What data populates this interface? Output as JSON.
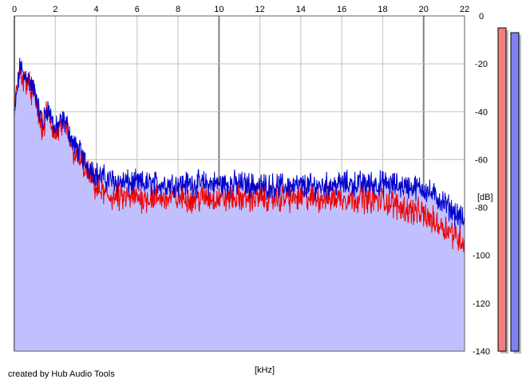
{
  "chart_data": {
    "type": "area",
    "title": "",
    "xlabel": "[kHz]",
    "ylabel": "[dB]",
    "xlim": [
      0,
      22
    ],
    "ylim": [
      -140,
      0
    ],
    "x_ticks": [
      0,
      2,
      4,
      6,
      8,
      10,
      12,
      14,
      16,
      18,
      20,
      22
    ],
    "y_ticks": [
      0,
      -20,
      -40,
      -60,
      -80,
      -100,
      -120,
      -140
    ],
    "grid": true,
    "series": [
      {
        "color": "#0000cc",
        "fill": "#c0c0ff",
        "x": [
          0,
          0.15,
          0.3,
          0.45,
          0.6,
          0.75,
          0.9,
          1.05,
          1.2,
          1.4,
          1.6,
          1.8,
          2.0,
          2.2,
          2.4,
          2.6,
          2.8,
          3.0,
          3.2,
          3.4,
          3.6,
          3.8,
          4.0,
          4.5,
          5.0,
          6.0,
          7.0,
          8.0,
          9.0,
          10.0,
          11.0,
          12.0,
          13.0,
          14.0,
          15.0,
          16.0,
          17.0,
          18.0,
          19.0,
          20.0,
          20.5,
          21.0,
          21.5,
          22.0
        ],
        "values": [
          -42,
          -30,
          -20,
          -26,
          -24,
          -28,
          -30,
          -33,
          -40,
          -45,
          -38,
          -42,
          -48,
          -45,
          -44,
          -46,
          -52,
          -55,
          -57,
          -60,
          -63,
          -64,
          -66,
          -68,
          -69,
          -70,
          -70,
          -70,
          -70,
          -70,
          -70,
          -71,
          -71,
          -71,
          -71,
          -70,
          -70,
          -70,
          -71,
          -72,
          -75,
          -78,
          -82,
          -86
        ]
      },
      {
        "color": "#ee0000",
        "x": [
          0,
          0.15,
          0.3,
          0.45,
          0.6,
          0.75,
          0.9,
          1.05,
          1.2,
          1.4,
          1.6,
          1.8,
          2.0,
          2.2,
          2.4,
          2.6,
          2.8,
          3.0,
          3.2,
          3.4,
          3.6,
          3.8,
          4.0,
          4.5,
          5.0,
          6.0,
          7.0,
          8.0,
          9.0,
          10.0,
          11.0,
          12.0,
          13.0,
          14.0,
          15.0,
          16.0,
          17.0,
          18.0,
          19.0,
          20.0,
          20.5,
          21.0,
          21.5,
          22.0
        ],
        "values": [
          -40,
          -28,
          -22,
          -28,
          -26,
          -30,
          -32,
          -35,
          -42,
          -48,
          -40,
          -45,
          -50,
          -47,
          -46,
          -48,
          -55,
          -58,
          -60,
          -63,
          -66,
          -68,
          -72,
          -75,
          -76,
          -76,
          -76,
          -76,
          -76,
          -76,
          -76,
          -76,
          -76,
          -76,
          -76,
          -76,
          -76,
          -77,
          -80,
          -83,
          -86,
          -88,
          -91,
          -95
        ]
      }
    ],
    "meters": [
      {
        "value": -5,
        "color": "#f08080"
      },
      {
        "value": -7,
        "color": "#8080f0"
      }
    ]
  },
  "credit": "created by Hub Audio Tools"
}
